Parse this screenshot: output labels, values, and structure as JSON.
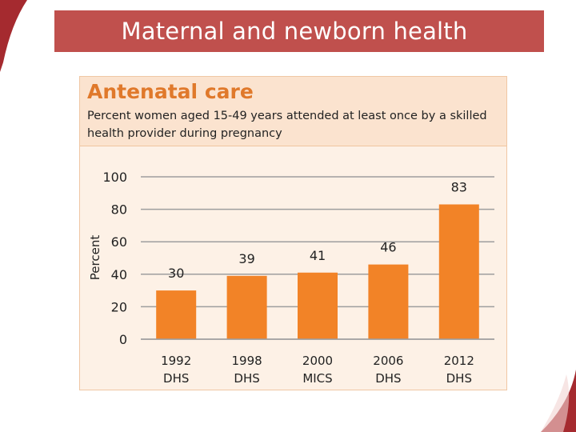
{
  "slide": {
    "title": "Maternal and newborn health"
  },
  "panel": {
    "title": "Antenatal care",
    "subtitle": "Percent women aged 15-49 years attended at least once by a skilled health provider during pregnancy"
  },
  "colors": {
    "banner": "#c0504d",
    "bar": "#f28327",
    "panel_title": "#e0792b",
    "panel_bg": "#fdf1e6",
    "panel_header_bg": "#fbe3cf",
    "gridline": "#9e9e9e",
    "corner_decoration": "#a52a2f"
  },
  "chart_data": {
    "type": "bar",
    "categories": [
      [
        "1992",
        "DHS"
      ],
      [
        "1998",
        "DHS"
      ],
      [
        "2000",
        "MICS"
      ],
      [
        "2006",
        "DHS"
      ],
      [
        "2012",
        "DHS"
      ]
    ],
    "values": [
      30,
      39,
      41,
      46,
      83
    ],
    "data_labels": [
      "30",
      "39",
      "41",
      "46",
      "83"
    ],
    "ylabel": "Percent",
    "xlabel": "",
    "ylim": [
      0,
      100
    ],
    "yticks": [
      0,
      20,
      40,
      60,
      80,
      100
    ],
    "grid": true,
    "legend": "none"
  }
}
